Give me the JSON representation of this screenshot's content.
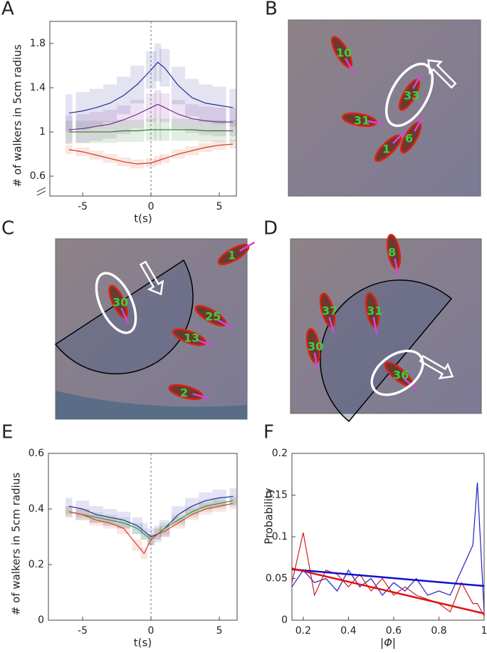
{
  "panels": [
    "A",
    "B",
    "C",
    "D",
    "E",
    "F"
  ],
  "photos": [
    {
      "panel": "B",
      "labels": [
        "10",
        "33",
        "31",
        "1",
        "6"
      ]
    },
    {
      "panel": "C",
      "labels": [
        "1",
        "30",
        "25",
        "13",
        "2"
      ]
    },
    {
      "panel": "D",
      "labels": [
        "8",
        "37",
        "31",
        "30",
        "36"
      ]
    }
  ],
  "chart_data": [
    {
      "type": "line",
      "xlabel": "t(s)",
      "ylabel": "# of walkers in 5cm radius",
      "xlim": [
        -7.4,
        6.25
      ],
      "xticks": [
        -5,
        0,
        5
      ],
      "ylim": [
        0.42,
        2.0
      ],
      "yticks": [
        0.6,
        1,
        1.4,
        1.8
      ],
      "x": [
        -6,
        -5,
        -4,
        -3,
        -2,
        -1,
        0,
        0.5,
        1,
        2,
        3,
        4,
        5,
        6
      ],
      "series": [
        {
          "color": "#2a2a9a",
          "values": [
            1.17,
            1.19,
            1.22,
            1.26,
            1.33,
            1.43,
            1.56,
            1.63,
            1.58,
            1.42,
            1.31,
            1.26,
            1.24,
            1.22
          ],
          "errors": [
            0.17,
            0.17,
            0.17,
            0.17,
            0.17,
            0.17,
            0.17,
            0.17,
            0.17,
            0.17,
            0.17,
            0.17,
            0.17,
            0.17
          ]
        },
        {
          "color": "#7a2a9a",
          "values": [
            1.02,
            1.03,
            1.05,
            1.07,
            1.11,
            1.16,
            1.22,
            1.25,
            1.22,
            1.16,
            1.12,
            1.1,
            1.09,
            1.09
          ],
          "errors": [
            0.13,
            0.13,
            0.13,
            0.13,
            0.13,
            0.13,
            0.13,
            0.13,
            0.13,
            0.13,
            0.13,
            0.13,
            0.13,
            0.13
          ]
        },
        {
          "color": "#2a7a2a",
          "values": [
            1.0,
            1.0,
            1.0,
            1.0,
            1.01,
            1.01,
            1.02,
            1.02,
            1.02,
            1.02,
            1.02,
            1.01,
            1.01,
            1.01
          ],
          "errors": [
            0.1,
            0.1,
            0.1,
            0.1,
            0.1,
            0.1,
            0.1,
            0.1,
            0.1,
            0.1,
            0.1,
            0.1,
            0.1,
            0.1
          ]
        },
        {
          "color": "#d03a1a",
          "values": [
            0.84,
            0.82,
            0.79,
            0.76,
            0.73,
            0.71,
            0.72,
            0.74,
            0.76,
            0.8,
            0.83,
            0.86,
            0.88,
            0.89
          ],
          "errors": [
            0.04,
            0.04,
            0.04,
            0.04,
            0.04,
            0.04,
            0.04,
            0.04,
            0.04,
            0.04,
            0.04,
            0.04,
            0.04,
            0.04
          ]
        }
      ]
    },
    {
      "type": "line",
      "xlabel": "t(s)",
      "ylabel": "# of walkers in 5cm radius",
      "xlim": [
        -7.5,
        6.3
      ],
      "xticks": [
        -5,
        0,
        5
      ],
      "ylim": [
        0,
        0.6
      ],
      "yticks": [
        0,
        0.2,
        0.4,
        0.6
      ],
      "x": [
        -6,
        -5,
        -4,
        -3,
        -2,
        -1,
        -0.5,
        0,
        0.5,
        1,
        2,
        3,
        4,
        5,
        6
      ],
      "series": [
        {
          "color": "#2a2ab0",
          "values": [
            0.41,
            0.4,
            0.38,
            0.37,
            0.36,
            0.34,
            0.32,
            0.3,
            0.31,
            0.33,
            0.38,
            0.41,
            0.43,
            0.44,
            0.445
          ],
          "errors": [
            0.03,
            0.03,
            0.03,
            0.03,
            0.03,
            0.03,
            0.03,
            0.03,
            0.03,
            0.03,
            0.03,
            0.03,
            0.03,
            0.03,
            0.03
          ]
        },
        {
          "color": "#2a9a3a",
          "values": [
            0.39,
            0.38,
            0.37,
            0.36,
            0.35,
            0.33,
            0.31,
            0.29,
            0.31,
            0.33,
            0.36,
            0.39,
            0.41,
            0.42,
            0.43
          ],
          "errors": [
            0.02,
            0.02,
            0.02,
            0.02,
            0.02,
            0.02,
            0.02,
            0.02,
            0.02,
            0.02,
            0.02,
            0.02,
            0.02,
            0.02,
            0.02
          ]
        },
        {
          "color": "#e03a2a",
          "values": [
            0.39,
            0.38,
            0.36,
            0.35,
            0.33,
            0.27,
            0.24,
            0.29,
            0.31,
            0.32,
            0.35,
            0.38,
            0.4,
            0.41,
            0.42
          ],
          "errors": [
            0.02,
            0.02,
            0.02,
            0.02,
            0.02,
            0.02,
            0.02,
            0.02,
            0.02,
            0.02,
            0.02,
            0.02,
            0.02,
            0.02,
            0.02
          ]
        }
      ]
    },
    {
      "type": "line",
      "xlabel": "|Φ|",
      "ylabel": "Probability",
      "xlim": [
        0.15,
        1
      ],
      "xticks": [
        0.2,
        0.4,
        0.6,
        0.8,
        1
      ],
      "ylim": [
        0,
        0.2
      ],
      "yticks": [
        0,
        0.05,
        0.1,
        0.15,
        0.2
      ],
      "x": [
        0.15,
        0.2,
        0.25,
        0.3,
        0.35,
        0.4,
        0.45,
        0.5,
        0.55,
        0.6,
        0.65,
        0.7,
        0.75,
        0.8,
        0.85,
        0.9,
        0.95,
        0.97,
        1
      ],
      "series": [
        {
          "color": "#2020c0",
          "values": [
            0.04,
            0.06,
            0.045,
            0.05,
            0.035,
            0.06,
            0.04,
            0.05,
            0.03,
            0.045,
            0.035,
            0.05,
            0.03,
            0.035,
            0.03,
            0.06,
            0.09,
            0.165,
            0.01
          ]
        },
        {
          "color": "#d02020",
          "values": [
            0.045,
            0.105,
            0.03,
            0.06,
            0.055,
            0.04,
            0.055,
            0.035,
            0.05,
            0.03,
            0.04,
            0.03,
            0.025,
            0.02,
            0.01,
            0.045,
            0.02,
            0.02,
            0.005
          ]
        }
      ],
      "fits": [
        {
          "color": "#1010d0",
          "x": [
            0.15,
            1
          ],
          "values": [
            0.061,
            0.041
          ]
        },
        {
          "color": "#e01010",
          "x": [
            0.15,
            1
          ],
          "values": [
            0.062,
            0.008
          ]
        }
      ]
    }
  ]
}
